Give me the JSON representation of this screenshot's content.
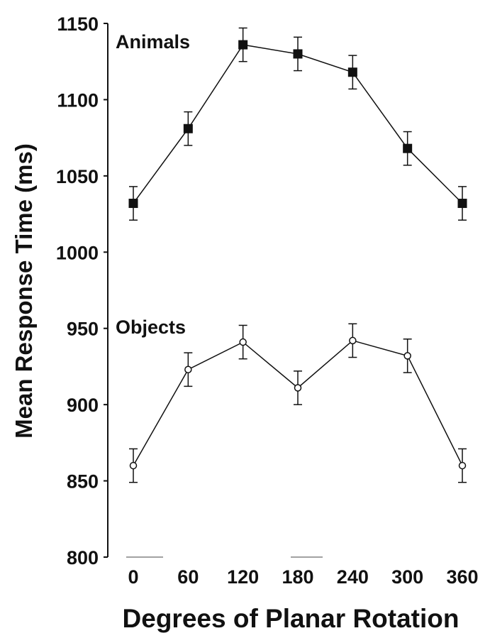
{
  "chart_data": {
    "type": "line",
    "title": "",
    "xlabel": "Degrees of Planar Rotation",
    "ylabel": "Mean Response Time (ms)",
    "x": [
      0,
      60,
      120,
      180,
      240,
      300,
      360
    ],
    "x_tick_labels": [
      "0",
      "60",
      "120",
      "180",
      "240",
      "300",
      "360"
    ],
    "y_tick_labels": [
      "800",
      "850",
      "900",
      "950",
      "1000",
      "1050",
      "1100",
      "1150"
    ],
    "ylim": [
      800,
      1150
    ],
    "grid": false,
    "error_bars": true,
    "series": [
      {
        "name": "Animals",
        "marker": "filled-square",
        "color": "#111111",
        "values": [
          1032,
          1081,
          1136,
          1130,
          1118,
          1068,
          1032
        ],
        "error": [
          11,
          11,
          11,
          11,
          11,
          11,
          11
        ]
      },
      {
        "name": "Objects",
        "marker": "open-circle",
        "color": "#111111",
        "values": [
          860,
          923,
          941,
          911,
          942,
          932,
          860
        ],
        "error": [
          11,
          11,
          11,
          11,
          11,
          11,
          11
        ]
      }
    ]
  }
}
